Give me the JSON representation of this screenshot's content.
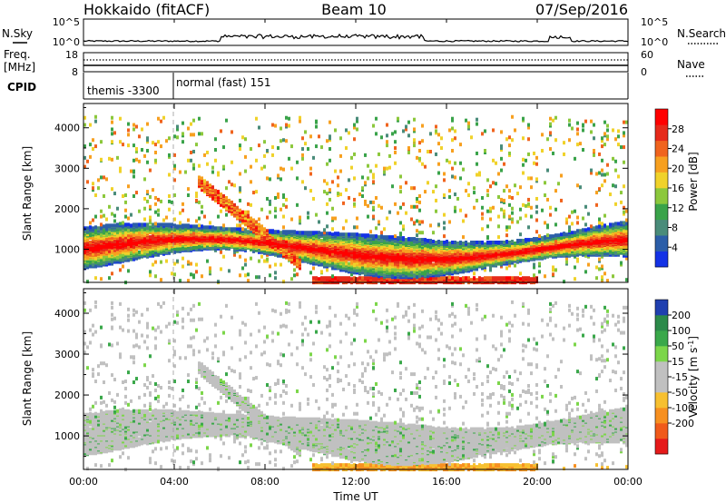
{
  "header": {
    "radar": "Hokkaido (fitACF)",
    "beam": "Beam 10",
    "date": "07/Sep/2016"
  },
  "panels": {
    "nsky": {
      "label": "N.Sky",
      "right_label": "N.Search",
      "left_ticks": [
        "10^5",
        "10^0"
      ],
      "right_ticks": [
        "10^5",
        "10^0"
      ]
    },
    "freq": {
      "label_top": "Freq.",
      "label_unit": "[MHz]",
      "left_ticks": [
        "18",
        "8"
      ],
      "right_ticks": [
        "60",
        "0"
      ],
      "right_label": "Nave"
    },
    "cpid": {
      "label": "CPID",
      "segments": [
        {
          "text": "themis -3300",
          "start_hour": 0,
          "end_hour": 4
        },
        {
          "text": "normal (fast) 151",
          "start_hour": 4,
          "end_hour": 24
        }
      ]
    }
  },
  "time_axis": {
    "label": "Time UT",
    "ticks": [
      "00:00",
      "04:00",
      "08:00",
      "12:00",
      "16:00",
      "20:00",
      "00:00"
    ],
    "range_hours": [
      0,
      24
    ]
  },
  "chart_data": [
    {
      "type": "heatmap",
      "name": "power",
      "ylabel": "Slant Range [km]",
      "yticks": [
        1000,
        2000,
        3000,
        4000
      ],
      "ylim": [
        180,
        4600
      ],
      "colorbar": {
        "label": "Power [dB]",
        "ticks": [
          4,
          8,
          12,
          16,
          20,
          24,
          28
        ],
        "range": [
          0,
          32
        ],
        "colors": [
          "#1432e6",
          "#2c5ea8",
          "#4a8c7a",
          "#3aa34a",
          "#8cc83c",
          "#f0d22a",
          "#f7a020",
          "#f0641e",
          "#e62a1a",
          "#ff0000"
        ]
      }
    },
    {
      "type": "heatmap",
      "name": "velocity",
      "ylabel": "Slant Range [km]",
      "yticks": [
        1000,
        2000,
        3000,
        4000
      ],
      "ylim": [
        180,
        4600
      ],
      "colorbar": {
        "label": "Velocity [m s^-1]",
        "ticks": [
          200,
          100,
          50,
          15,
          -15,
          -50,
          -100,
          -200
        ],
        "colors": [
          "#2040b0",
          "#2c8a4a",
          "#3aa84a",
          "#7cd64a",
          "#c0c0c0",
          "#c0c0c0",
          "#f7c030",
          "#f79020",
          "#f05a1a",
          "#e61a1a"
        ]
      }
    }
  ]
}
